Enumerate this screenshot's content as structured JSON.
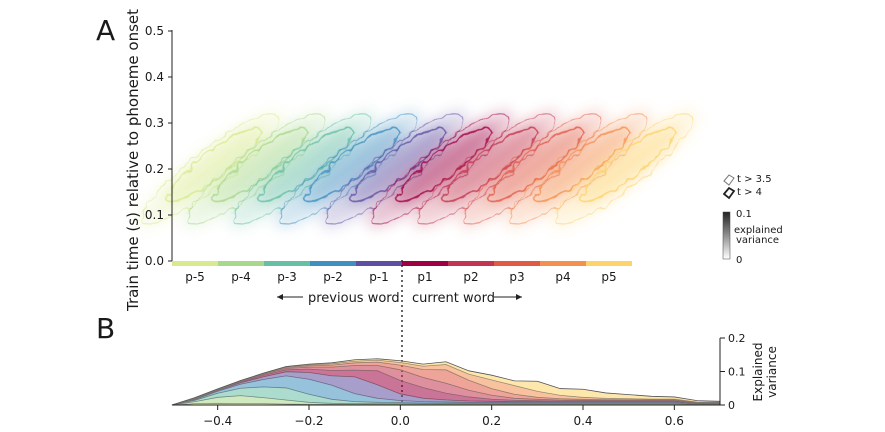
{
  "panel_labels": {
    "a": "A",
    "b": "B"
  },
  "colors": {
    "p-5": "#d9ea8e",
    "p-4": "#a9d88c",
    "p-3": "#67bfa4",
    "p-2": "#3f8fc0",
    "p-1": "#5e4fa2",
    "p1": "#9e0142",
    "p2": "#c2344f",
    "p3": "#e05a44",
    "p4": "#f48f4f",
    "p5": "#fdd36a",
    "axis": "#222222",
    "divider": "#222222"
  },
  "chart_data": [
    {
      "id": "A",
      "type": "heatmap",
      "title": "",
      "ylabel": "Train time (s) relative to phoneme onset",
      "ylim": [
        0.0,
        0.5
      ],
      "yticks": [
        "0.0",
        "0.1",
        "0.2",
        "0.3",
        "0.4",
        "0.5"
      ],
      "grid": false,
      "categories": [
        "p-5",
        "p-4",
        "p-3",
        "p-2",
        "p-1",
        "p1",
        "p2",
        "p3",
        "p4",
        "p5"
      ],
      "group_labels": {
        "previous": "previous word",
        "current": "current word"
      },
      "legend": {
        "thin": "t > 3.5",
        "thick": "t > 4",
        "position": "right"
      },
      "colorbar": {
        "label_line1": "explained",
        "label_line2": "variance",
        "max": "0.1",
        "min": "0"
      }
    },
    {
      "id": "B",
      "type": "area",
      "title": "",
      "xlabel": "",
      "ylabel_line1": "Explained",
      "ylabel_line2": "variance",
      "xlim": [
        -0.5,
        0.7
      ],
      "ylim": [
        0,
        0.2
      ],
      "xticks": [
        "−0.4",
        "−0.2",
        "0.0",
        "0.2",
        "0.4",
        "0.6"
      ],
      "xtick_values": [
        -0.4,
        -0.2,
        0.0,
        0.2,
        0.4,
        0.6
      ],
      "yticks": [
        "0",
        "0.1",
        "0.2"
      ],
      "ytick_values": [
        0,
        0.1,
        0.2
      ],
      "stacked": true,
      "x": [
        -0.5,
        -0.45,
        -0.4,
        -0.35,
        -0.3,
        -0.25,
        -0.2,
        -0.15,
        -0.1,
        -0.05,
        0.0,
        0.05,
        0.1,
        0.15,
        0.2,
        0.25,
        0.3,
        0.35,
        0.4,
        0.45,
        0.5,
        0.55,
        0.6,
        0.65,
        0.7
      ],
      "series": [
        {
          "key": "p-5",
          "values": [
            0,
            0.004,
            0.005,
            0.004,
            0.004,
            0.003,
            0.002,
            0.002,
            0.002,
            0.002,
            0.002,
            0.002,
            0.002,
            0.002,
            0.002,
            0.002,
            0.002,
            0.002,
            0.002,
            0.002,
            0.002,
            0.002,
            0.002,
            0.001,
            0.001
          ]
        },
        {
          "key": "p-4",
          "values": [
            0,
            0.006,
            0.018,
            0.024,
            0.018,
            0.012,
            0.006,
            0.003,
            0.002,
            0.002,
            0.002,
            0.002,
            0.002,
            0.002,
            0.002,
            0.002,
            0.002,
            0.002,
            0.002,
            0.002,
            0.002,
            0.002,
            0.002,
            0.001,
            0.001
          ]
        },
        {
          "key": "p-3",
          "values": [
            0,
            0.004,
            0.012,
            0.022,
            0.032,
            0.036,
            0.024,
            0.012,
            0.006,
            0.004,
            0.003,
            0.002,
            0.002,
            0.002,
            0.002,
            0.002,
            0.002,
            0.002,
            0.002,
            0.002,
            0.002,
            0.002,
            0.002,
            0.001,
            0.001
          ]
        },
        {
          "key": "p-2",
          "values": [
            0,
            0.002,
            0.006,
            0.012,
            0.022,
            0.036,
            0.045,
            0.042,
            0.024,
            0.012,
            0.006,
            0.004,
            0.003,
            0.002,
            0.002,
            0.002,
            0.002,
            0.002,
            0.002,
            0.002,
            0.002,
            0.002,
            0.002,
            0.001,
            0.001
          ]
        },
        {
          "key": "p-1",
          "values": [
            0,
            0.001,
            0.002,
            0.004,
            0.008,
            0.012,
            0.02,
            0.028,
            0.05,
            0.04,
            0.02,
            0.01,
            0.006,
            0.004,
            0.003,
            0.002,
            0.002,
            0.002,
            0.002,
            0.002,
            0.002,
            0.002,
            0.002,
            0.001,
            0.001
          ]
        },
        {
          "key": "p1",
          "values": [
            0,
            0.001,
            0.001,
            0.002,
            0.004,
            0.006,
            0.01,
            0.016,
            0.02,
            0.042,
            0.04,
            0.032,
            0.02,
            0.012,
            0.006,
            0.004,
            0.003,
            0.002,
            0.002,
            0.002,
            0.002,
            0.002,
            0.002,
            0.001,
            0.001
          ]
        },
        {
          "key": "p2",
          "values": [
            0,
            0.001,
            0.001,
            0.002,
            0.003,
            0.004,
            0.006,
            0.01,
            0.014,
            0.016,
            0.032,
            0.03,
            0.03,
            0.02,
            0.012,
            0.006,
            0.004,
            0.003,
            0.002,
            0.002,
            0.002,
            0.002,
            0.002,
            0.001,
            0.001
          ]
        },
        {
          "key": "p3",
          "values": [
            0,
            0.001,
            0.001,
            0.001,
            0.002,
            0.003,
            0.004,
            0.006,
            0.008,
            0.01,
            0.014,
            0.024,
            0.04,
            0.03,
            0.02,
            0.012,
            0.006,
            0.004,
            0.003,
            0.002,
            0.002,
            0.002,
            0.002,
            0.001,
            0.001
          ]
        },
        {
          "key": "p4",
          "values": [
            0,
            0.001,
            0.001,
            0.001,
            0.001,
            0.002,
            0.003,
            0.004,
            0.005,
            0.006,
            0.008,
            0.01,
            0.016,
            0.018,
            0.026,
            0.026,
            0.018,
            0.01,
            0.006,
            0.004,
            0.003,
            0.002,
            0.002,
            0.001,
            0.001
          ]
        },
        {
          "key": "p5",
          "values": [
            0,
            0.001,
            0.001,
            0.001,
            0.001,
            0.001,
            0.002,
            0.003,
            0.004,
            0.004,
            0.005,
            0.006,
            0.008,
            0.01,
            0.014,
            0.014,
            0.03,
            0.02,
            0.024,
            0.016,
            0.012,
            0.008,
            0.006,
            0.004,
            0.002
          ]
        }
      ]
    }
  ]
}
